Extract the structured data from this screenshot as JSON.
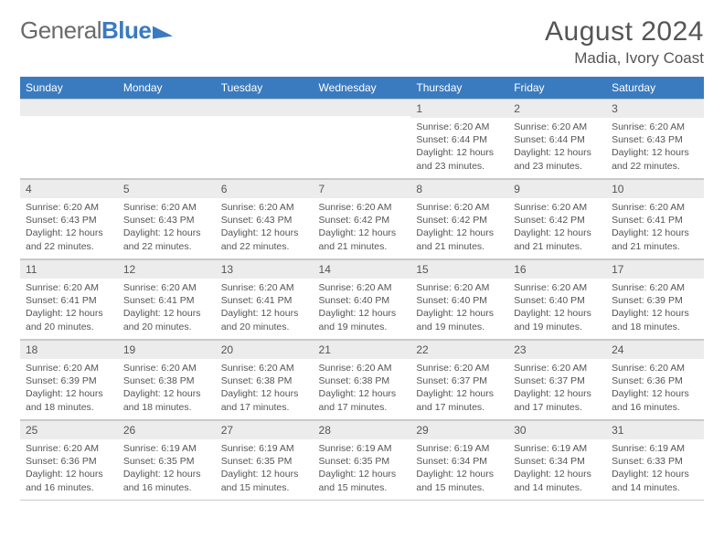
{
  "brand": {
    "part1": "General",
    "part2": "Blue"
  },
  "title": "August 2024",
  "location": "Madia, Ivory Coast",
  "accent_color": "#3a7bbf",
  "day_bg": "#ececec",
  "text_color": "#555555",
  "headers": [
    "Sunday",
    "Monday",
    "Tuesday",
    "Wednesday",
    "Thursday",
    "Friday",
    "Saturday"
  ],
  "weeks": [
    [
      {
        "n": "",
        "lines": []
      },
      {
        "n": "",
        "lines": []
      },
      {
        "n": "",
        "lines": []
      },
      {
        "n": "",
        "lines": []
      },
      {
        "n": "1",
        "lines": [
          "Sunrise: 6:20 AM",
          "Sunset: 6:44 PM",
          "Daylight: 12 hours and 23 minutes."
        ]
      },
      {
        "n": "2",
        "lines": [
          "Sunrise: 6:20 AM",
          "Sunset: 6:44 PM",
          "Daylight: 12 hours and 23 minutes."
        ]
      },
      {
        "n": "3",
        "lines": [
          "Sunrise: 6:20 AM",
          "Sunset: 6:43 PM",
          "Daylight: 12 hours and 22 minutes."
        ]
      }
    ],
    [
      {
        "n": "4",
        "lines": [
          "Sunrise: 6:20 AM",
          "Sunset: 6:43 PM",
          "Daylight: 12 hours and 22 minutes."
        ]
      },
      {
        "n": "5",
        "lines": [
          "Sunrise: 6:20 AM",
          "Sunset: 6:43 PM",
          "Daylight: 12 hours and 22 minutes."
        ]
      },
      {
        "n": "6",
        "lines": [
          "Sunrise: 6:20 AM",
          "Sunset: 6:43 PM",
          "Daylight: 12 hours and 22 minutes."
        ]
      },
      {
        "n": "7",
        "lines": [
          "Sunrise: 6:20 AM",
          "Sunset: 6:42 PM",
          "Daylight: 12 hours and 21 minutes."
        ]
      },
      {
        "n": "8",
        "lines": [
          "Sunrise: 6:20 AM",
          "Sunset: 6:42 PM",
          "Daylight: 12 hours and 21 minutes."
        ]
      },
      {
        "n": "9",
        "lines": [
          "Sunrise: 6:20 AM",
          "Sunset: 6:42 PM",
          "Daylight: 12 hours and 21 minutes."
        ]
      },
      {
        "n": "10",
        "lines": [
          "Sunrise: 6:20 AM",
          "Sunset: 6:41 PM",
          "Daylight: 12 hours and 21 minutes."
        ]
      }
    ],
    [
      {
        "n": "11",
        "lines": [
          "Sunrise: 6:20 AM",
          "Sunset: 6:41 PM",
          "Daylight: 12 hours and 20 minutes."
        ]
      },
      {
        "n": "12",
        "lines": [
          "Sunrise: 6:20 AM",
          "Sunset: 6:41 PM",
          "Daylight: 12 hours and 20 minutes."
        ]
      },
      {
        "n": "13",
        "lines": [
          "Sunrise: 6:20 AM",
          "Sunset: 6:41 PM",
          "Daylight: 12 hours and 20 minutes."
        ]
      },
      {
        "n": "14",
        "lines": [
          "Sunrise: 6:20 AM",
          "Sunset: 6:40 PM",
          "Daylight: 12 hours and 19 minutes."
        ]
      },
      {
        "n": "15",
        "lines": [
          "Sunrise: 6:20 AM",
          "Sunset: 6:40 PM",
          "Daylight: 12 hours and 19 minutes."
        ]
      },
      {
        "n": "16",
        "lines": [
          "Sunrise: 6:20 AM",
          "Sunset: 6:40 PM",
          "Daylight: 12 hours and 19 minutes."
        ]
      },
      {
        "n": "17",
        "lines": [
          "Sunrise: 6:20 AM",
          "Sunset: 6:39 PM",
          "Daylight: 12 hours and 18 minutes."
        ]
      }
    ],
    [
      {
        "n": "18",
        "lines": [
          "Sunrise: 6:20 AM",
          "Sunset: 6:39 PM",
          "Daylight: 12 hours and 18 minutes."
        ]
      },
      {
        "n": "19",
        "lines": [
          "Sunrise: 6:20 AM",
          "Sunset: 6:38 PM",
          "Daylight: 12 hours and 18 minutes."
        ]
      },
      {
        "n": "20",
        "lines": [
          "Sunrise: 6:20 AM",
          "Sunset: 6:38 PM",
          "Daylight: 12 hours and 17 minutes."
        ]
      },
      {
        "n": "21",
        "lines": [
          "Sunrise: 6:20 AM",
          "Sunset: 6:38 PM",
          "Daylight: 12 hours and 17 minutes."
        ]
      },
      {
        "n": "22",
        "lines": [
          "Sunrise: 6:20 AM",
          "Sunset: 6:37 PM",
          "Daylight: 12 hours and 17 minutes."
        ]
      },
      {
        "n": "23",
        "lines": [
          "Sunrise: 6:20 AM",
          "Sunset: 6:37 PM",
          "Daylight: 12 hours and 17 minutes."
        ]
      },
      {
        "n": "24",
        "lines": [
          "Sunrise: 6:20 AM",
          "Sunset: 6:36 PM",
          "Daylight: 12 hours and 16 minutes."
        ]
      }
    ],
    [
      {
        "n": "25",
        "lines": [
          "Sunrise: 6:20 AM",
          "Sunset: 6:36 PM",
          "Daylight: 12 hours and 16 minutes."
        ]
      },
      {
        "n": "26",
        "lines": [
          "Sunrise: 6:19 AM",
          "Sunset: 6:35 PM",
          "Daylight: 12 hours and 16 minutes."
        ]
      },
      {
        "n": "27",
        "lines": [
          "Sunrise: 6:19 AM",
          "Sunset: 6:35 PM",
          "Daylight: 12 hours and 15 minutes."
        ]
      },
      {
        "n": "28",
        "lines": [
          "Sunrise: 6:19 AM",
          "Sunset: 6:35 PM",
          "Daylight: 12 hours and 15 minutes."
        ]
      },
      {
        "n": "29",
        "lines": [
          "Sunrise: 6:19 AM",
          "Sunset: 6:34 PM",
          "Daylight: 12 hours and 15 minutes."
        ]
      },
      {
        "n": "30",
        "lines": [
          "Sunrise: 6:19 AM",
          "Sunset: 6:34 PM",
          "Daylight: 12 hours and 14 minutes."
        ]
      },
      {
        "n": "31",
        "lines": [
          "Sunrise: 6:19 AM",
          "Sunset: 6:33 PM",
          "Daylight: 12 hours and 14 minutes."
        ]
      }
    ]
  ]
}
